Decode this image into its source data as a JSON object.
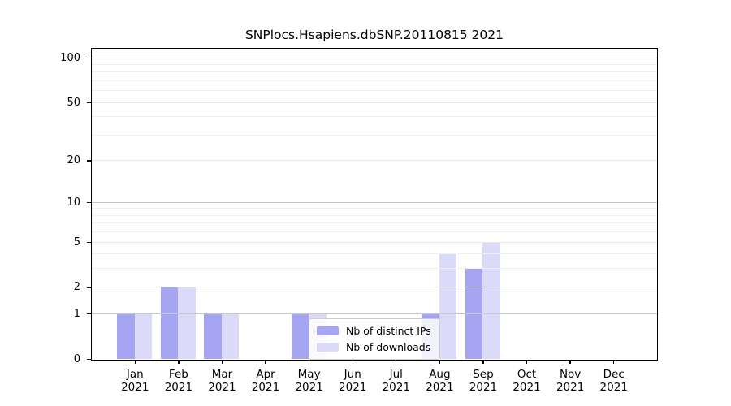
{
  "title": "SNPlocs.Hsapiens.dbSNP.20110815 2021",
  "chart_data": {
    "type": "bar",
    "categories": [
      {
        "month": "Jan",
        "year": "2021"
      },
      {
        "month": "Feb",
        "year": "2021"
      },
      {
        "month": "Mar",
        "year": "2021"
      },
      {
        "month": "Apr",
        "year": "2021"
      },
      {
        "month": "May",
        "year": "2021"
      },
      {
        "month": "Jun",
        "year": "2021"
      },
      {
        "month": "Jul",
        "year": "2021"
      },
      {
        "month": "Aug",
        "year": "2021"
      },
      {
        "month": "Sep",
        "year": "2021"
      },
      {
        "month": "Oct",
        "year": "2021"
      },
      {
        "month": "Nov",
        "year": "2021"
      },
      {
        "month": "Dec",
        "year": "2021"
      }
    ],
    "series": [
      {
        "name": "Nb of distinct IPs",
        "color": "#a5a5f2",
        "values": [
          1,
          2,
          1,
          0,
          1,
          0,
          0,
          1,
          3,
          0,
          0,
          0
        ]
      },
      {
        "name": "Nb of downloads",
        "color": "#dbdbf9",
        "values": [
          1,
          2,
          1,
          0,
          1,
          0,
          0,
          4,
          5,
          0,
          0,
          0
        ]
      }
    ],
    "yticks": [
      0,
      1,
      2,
      5,
      10,
      20,
      50,
      100
    ],
    "decade_gridlines": [
      1,
      10,
      100
    ],
    "major_gridlines": [
      2,
      5,
      20,
      50
    ],
    "minor_gridlines": [
      3,
      4,
      6,
      7,
      8,
      9,
      30,
      40,
      60,
      70,
      80,
      90
    ],
    "scale": "log1p",
    "ylim": [
      0,
      115
    ],
    "xlabel": "",
    "ylabel": "",
    "grid": true,
    "legend_position": "lower-center-right"
  },
  "colors": {
    "background": "#ffffff",
    "spine": "#000000",
    "decade_grid": "#c8c8c8",
    "minor_grid": "#f0f0f0"
  }
}
